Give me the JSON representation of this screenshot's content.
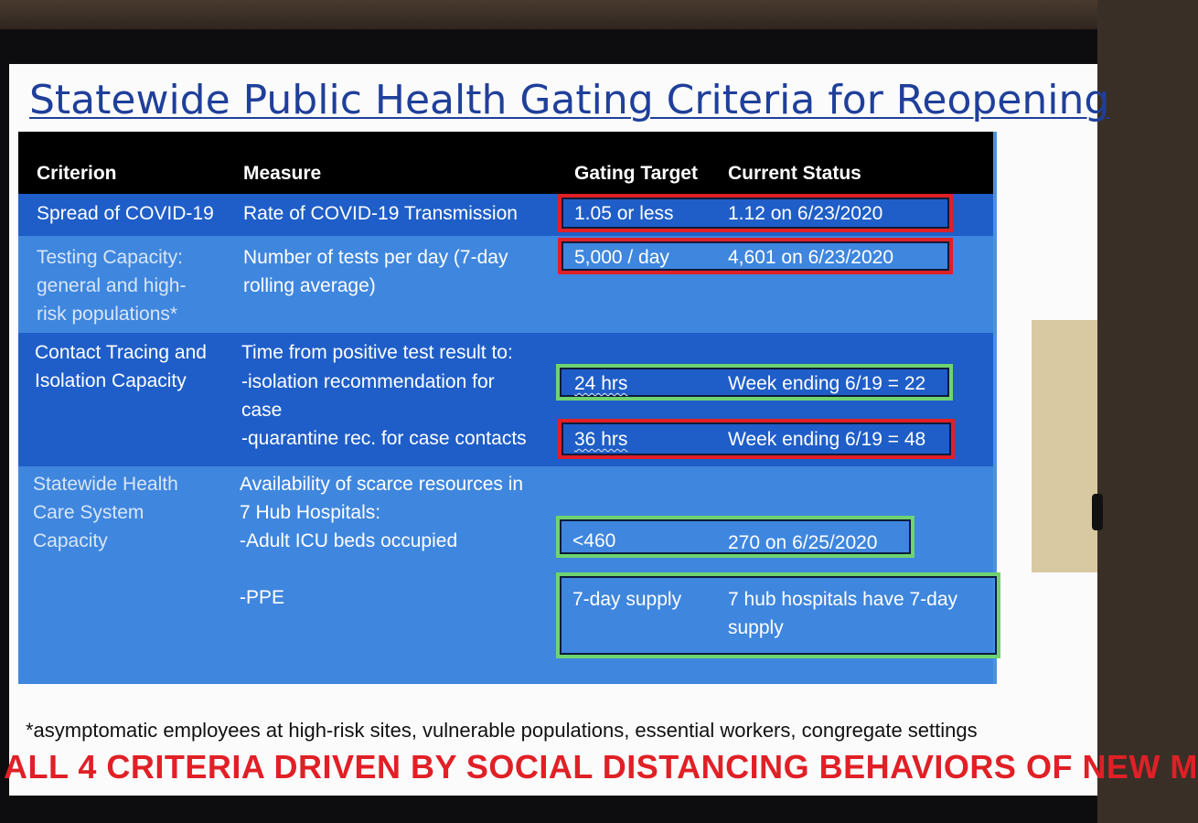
{
  "title": "Statewide Public Health Gating Criteria for Reopening",
  "columns": {
    "criterion": "Criterion",
    "measure": "Measure",
    "target": "Gating Target",
    "status": "Current Status"
  },
  "rows": [
    {
      "criterion": "Spread of COVID-19",
      "measure": "Rate of COVID-19 Transmission",
      "items": [
        {
          "target": "1.05 or less",
          "status": "1.12 on 6/23/2020",
          "box_color": "#e02026"
        }
      ]
    },
    {
      "criterion": "Testing Capacity:\ngeneral and high-\nrisk populations*",
      "measure": "Number of tests per day (7-day\nrolling average)",
      "items": [
        {
          "target": "5,000 / day",
          "status": "4,601 on 6/23/2020",
          "box_color": "#e02026"
        }
      ]
    },
    {
      "criterion": "Contact Tracing and\nIsolation Capacity",
      "measure_head": "Time from positive test result to:",
      "measure_a": "-isolation recommendation for\ncase",
      "measure_b": "-quarantine rec. for case contacts",
      "items": [
        {
          "target": "24 hrs",
          "status": "Week ending 6/19 = 22",
          "box_color": "#6fd36f"
        },
        {
          "target": "36 hrs",
          "status": "Week ending 6/19 = 48",
          "box_color": "#e02026"
        }
      ]
    },
    {
      "criterion": "Statewide Health\nCare System\nCapacity",
      "measure_head": "Availability of scarce resources in\n7 Hub Hospitals:",
      "measure_a": "-Adult ICU beds occupied",
      "measure_b": "-PPE",
      "items": [
        {
          "target": "<460",
          "status": "270 on 6/25/2020",
          "box_color": "#6fd36f"
        },
        {
          "target": "7-day supply",
          "status": "7 hub hospitals have 7-day\nsupply",
          "box_color": "#6fd36f"
        }
      ]
    }
  ],
  "footnote": "*asymptomatic employees at high-risk sites, vulnerable populations, essential workers, congregate settings",
  "banner": "ALL 4 CRITERIA DRIVEN BY SOCIAL DISTANCING BEHAVIORS OF NEW M",
  "colors": {
    "title": "#1f3f9a",
    "header_bg": "#000000",
    "row_dark": "#1f5ec8",
    "row_light": "#3f86de",
    "over_target": "#e02026",
    "within_target": "#6fd36f",
    "banner": "#e02026"
  }
}
